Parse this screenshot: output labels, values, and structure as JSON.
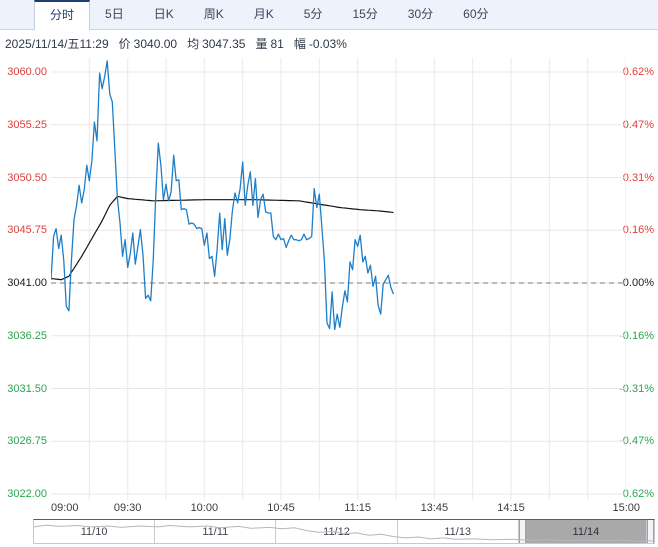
{
  "colors": {
    "up": "#e03e3e",
    "down": "#2ca450",
    "flat": "#1c1c1c",
    "price_line": "#1e7fc8",
    "avg_line": "#141414",
    "prev_close_line": "#7a7a7a",
    "grid_v": "#e9e9ec",
    "grid_h": "#f0e4e4",
    "spark": "#b3b7bb"
  },
  "tabs": [
    {
      "label": "分时",
      "active": true
    },
    {
      "label": "5日",
      "active": false
    },
    {
      "label": "日K",
      "active": false
    },
    {
      "label": "周K",
      "active": false
    },
    {
      "label": "月K",
      "active": false
    },
    {
      "label": "5分",
      "active": false
    },
    {
      "label": "15分",
      "active": false
    },
    {
      "label": "30分",
      "active": false
    },
    {
      "label": "60分",
      "active": false
    }
  ],
  "status": {
    "datetime": "2025/11/14/五11:29",
    "fields": [
      {
        "label": "价",
        "value": "3040.00"
      },
      {
        "label": "均",
        "value": "3047.35"
      },
      {
        "label": "量",
        "value": "81"
      },
      {
        "label": "幅",
        "value": "-0.03%"
      }
    ]
  },
  "chart_data": {
    "type": "line",
    "title": "分时 intraday price chart",
    "prev_close": 3041.0,
    "current_price": 3040.0,
    "vwap_current": 3047.35,
    "y_axis": {
      "max": 3060.0,
      "min": 3022.0,
      "left_labels": [
        {
          "text": "3060.00",
          "trend": "up"
        },
        {
          "text": "3055.25",
          "trend": "up"
        },
        {
          "text": "3050.50",
          "trend": "up"
        },
        {
          "text": "3045.75",
          "trend": "up"
        },
        {
          "text": "3041.00",
          "trend": "flat"
        },
        {
          "text": "3036.25",
          "trend": "down"
        },
        {
          "text": "3031.50",
          "trend": "down"
        },
        {
          "text": "3026.75",
          "trend": "down"
        },
        {
          "text": "3022.00",
          "trend": "down"
        }
      ],
      "right_labels": [
        {
          "text": "0.62%",
          "trend": "up"
        },
        {
          "text": "0.47%",
          "trend": "up"
        },
        {
          "text": "0.31%",
          "trend": "up"
        },
        {
          "text": "0.16%",
          "trend": "up"
        },
        {
          "text": "-0.00%",
          "trend": "flat"
        },
        {
          "text": "-0.16%",
          "trend": "down"
        },
        {
          "text": "-0.31%",
          "trend": "down"
        },
        {
          "text": "-0.47%",
          "trend": "down"
        },
        {
          "text": "-0.62%",
          "trend": "down"
        }
      ]
    },
    "x_axis": {
      "total_minutes": 225,
      "gridline_every_minutes": 15,
      "ticks": [
        {
          "label": "09:00",
          "minute": 0
        },
        {
          "label": "09:30",
          "minute": 30
        },
        {
          "label": "10:00",
          "minute": 60
        },
        {
          "label": "10:45",
          "minute": 90
        },
        {
          "label": "11:15",
          "minute": 120
        },
        {
          "label": "13:45",
          "minute": 150
        },
        {
          "label": "14:15",
          "minute": 180
        },
        {
          "label": "15:00",
          "minute": 225
        }
      ]
    },
    "series": [
      {
        "name": "price",
        "values": [
          3041.3,
          3045.2,
          3045.9,
          3044.1,
          3045.3,
          3043.0,
          3038.9,
          3038.5,
          3043.0,
          3046.7,
          3048.0,
          3049.8,
          3048.2,
          3049.4,
          3051.6,
          3050.2,
          3052.0,
          3055.5,
          3053.8,
          3059.9,
          3058.5,
          3059.6,
          3061.0,
          3058.0,
          3057.3,
          3052.9,
          3048.6,
          3046.4,
          3043.4,
          3044.9,
          3042.4,
          3043.6,
          3045.5,
          3042.7,
          3044.3,
          3045.8,
          3043.5,
          3039.6,
          3039.9,
          3039.4,
          3043.0,
          3049.0,
          3053.6,
          3051.6,
          3048.5,
          3049.9,
          3048.4,
          3049.2,
          3052.5,
          3050.2,
          3050.3,
          3047.6,
          3047.7,
          3047.6,
          3046.3,
          3046.4,
          3046.3,
          3045.9,
          3046.0,
          3045.9,
          3044.4,
          3045.5,
          3043.2,
          3043.4,
          3041.6,
          3044.0,
          3047.3,
          3044.0,
          3046.8,
          3043.5,
          3045.0,
          3047.5,
          3049.1,
          3048.2,
          3049.5,
          3051.9,
          3048.0,
          3049.8,
          3051.0,
          3048.0,
          3050.4,
          3046.9,
          3048.5,
          3049.0,
          3047.4,
          3047.3,
          3047.3,
          3045.2,
          3044.9,
          3045.4,
          3044.9,
          3045.0,
          3044.2,
          3044.8,
          3045.3,
          3044.9,
          3044.9,
          3044.8,
          3044.9,
          3045.4,
          3044.9,
          3045.0,
          3045.2,
          3049.5,
          3047.8,
          3049.0,
          3046.0,
          3043.0,
          3037.4,
          3036.9,
          3040.2,
          3036.8,
          3038.2,
          3037.0,
          3038.8,
          3040.3,
          3039.3,
          3042.9,
          3042.2,
          3044.9,
          3044.3,
          3045.3,
          3042.9,
          3043.4,
          3041.9,
          3042.6,
          3040.7,
          3041.6,
          3039.0,
          3038.2,
          3040.9,
          3041.3,
          3041.7,
          3040.6,
          3040.0
        ]
      },
      {
        "name": "avg_vwap",
        "control_points": [
          [
            0,
            3041.4
          ],
          [
            4,
            3041.3
          ],
          [
            7,
            3041.6
          ],
          [
            12,
            3043.4
          ],
          [
            16,
            3045.0
          ],
          [
            20,
            3046.6
          ],
          [
            23,
            3048.0
          ],
          [
            26,
            3048.8
          ],
          [
            30,
            3048.6
          ],
          [
            40,
            3048.4
          ],
          [
            60,
            3048.5
          ],
          [
            80,
            3048.5
          ],
          [
            97,
            3048.4
          ],
          [
            105,
            3048.1
          ],
          [
            113,
            3047.8
          ],
          [
            121,
            3047.6
          ],
          [
            128,
            3047.5
          ],
          [
            134,
            3047.35
          ]
        ]
      }
    ]
  },
  "navigator": {
    "days": [
      {
        "label": "11/10",
        "selected": false
      },
      {
        "label": "11/11",
        "selected": false
      },
      {
        "label": "11/12",
        "selected": false
      },
      {
        "label": "11/13",
        "selected": false
      },
      {
        "label": "11/14",
        "selected": true
      }
    ],
    "sparkline": [
      [
        0,
        30
      ],
      [
        2,
        22
      ],
      [
        4,
        28
      ],
      [
        7,
        24
      ],
      [
        9,
        30
      ],
      [
        12,
        26
      ],
      [
        14,
        32
      ],
      [
        17,
        26
      ],
      [
        20,
        30
      ],
      [
        22,
        24
      ],
      [
        25,
        30
      ],
      [
        28,
        26
      ],
      [
        30,
        34
      ],
      [
        33,
        28
      ],
      [
        35,
        36
      ],
      [
        38,
        32
      ],
      [
        40,
        38
      ],
      [
        42,
        34
      ],
      [
        44,
        46
      ],
      [
        46,
        54
      ],
      [
        48,
        50
      ],
      [
        50,
        60
      ],
      [
        52,
        56
      ],
      [
        54,
        66
      ],
      [
        56,
        62
      ],
      [
        58,
        72
      ],
      [
        60,
        78
      ],
      [
        62,
        74
      ],
      [
        64,
        82
      ],
      [
        66,
        78
      ],
      [
        68,
        84
      ],
      [
        71,
        82
      ],
      [
        74,
        86
      ],
      [
        77,
        84
      ],
      [
        80,
        88
      ],
      [
        83,
        86
      ],
      [
        86,
        90
      ],
      [
        89,
        87
      ],
      [
        92,
        91
      ],
      [
        95,
        88
      ],
      [
        98,
        92
      ],
      [
        100,
        90
      ]
    ]
  }
}
